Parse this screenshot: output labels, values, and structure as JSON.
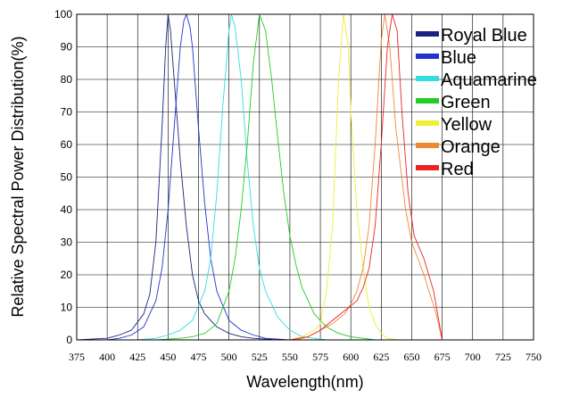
{
  "chart_data": {
    "type": "line",
    "title": "",
    "xlabel": "Wavelength(nm)",
    "ylabel": "Relative Spectral Power Distribution(%)",
    "xlim": [
      375,
      750
    ],
    "ylim": [
      0,
      100
    ],
    "x_ticks": [
      375,
      400,
      425,
      450,
      475,
      500,
      525,
      550,
      575,
      600,
      625,
      650,
      675,
      700,
      725,
      750
    ],
    "y_ticks": [
      0,
      10,
      20,
      30,
      40,
      50,
      60,
      70,
      80,
      90,
      100
    ],
    "grid": true,
    "legend_position": "top-right",
    "series": [
      {
        "name": "Royal Blue",
        "color": "#1a237e",
        "points": [
          [
            375,
            0
          ],
          [
            400,
            0.5
          ],
          [
            410,
            1.5
          ],
          [
            420,
            3
          ],
          [
            430,
            8
          ],
          [
            435,
            14
          ],
          [
            440,
            30
          ],
          [
            445,
            65
          ],
          [
            448,
            90
          ],
          [
            450,
            100
          ],
          [
            452,
            95
          ],
          [
            455,
            80
          ],
          [
            460,
            55
          ],
          [
            465,
            35
          ],
          [
            470,
            20
          ],
          [
            475,
            12
          ],
          [
            480,
            8
          ],
          [
            490,
            4
          ],
          [
            500,
            2
          ],
          [
            510,
            1
          ],
          [
            520,
            0.5
          ],
          [
            540,
            0
          ]
        ]
      },
      {
        "name": "Blue",
        "color": "#2233cc",
        "points": [
          [
            375,
            0
          ],
          [
            400,
            0
          ],
          [
            410,
            0.5
          ],
          [
            420,
            1.5
          ],
          [
            430,
            4
          ],
          [
            440,
            12
          ],
          [
            445,
            22
          ],
          [
            450,
            40
          ],
          [
            455,
            65
          ],
          [
            460,
            90
          ],
          [
            463,
            98
          ],
          [
            465,
            100
          ],
          [
            468,
            96
          ],
          [
            470,
            90
          ],
          [
            475,
            65
          ],
          [
            480,
            42
          ],
          [
            485,
            25
          ],
          [
            490,
            15
          ],
          [
            500,
            6
          ],
          [
            510,
            3
          ],
          [
            520,
            1.5
          ],
          [
            530,
            0.5
          ],
          [
            550,
            0
          ]
        ]
      },
      {
        "name": "Aquamarine",
        "color": "#33dddd",
        "points": [
          [
            425,
            0
          ],
          [
            440,
            0.5
          ],
          [
            450,
            1.5
          ],
          [
            460,
            3
          ],
          [
            470,
            6
          ],
          [
            480,
            15
          ],
          [
            485,
            25
          ],
          [
            490,
            45
          ],
          [
            495,
            72
          ],
          [
            500,
            95
          ],
          [
            502,
            100
          ],
          [
            505,
            96
          ],
          [
            510,
            80
          ],
          [
            515,
            55
          ],
          [
            520,
            35
          ],
          [
            525,
            22
          ],
          [
            530,
            15
          ],
          [
            540,
            7
          ],
          [
            550,
            3
          ],
          [
            560,
            1
          ],
          [
            580,
            0
          ]
        ]
      },
      {
        "name": "Green",
        "color": "#22cc22",
        "points": [
          [
            440,
            0
          ],
          [
            460,
            0.5
          ],
          [
            470,
            1
          ],
          [
            480,
            2
          ],
          [
            490,
            5
          ],
          [
            500,
            15
          ],
          [
            505,
            25
          ],
          [
            510,
            40
          ],
          [
            515,
            60
          ],
          [
            520,
            85
          ],
          [
            525,
            100
          ],
          [
            530,
            95
          ],
          [
            535,
            80
          ],
          [
            540,
            62
          ],
          [
            545,
            45
          ],
          [
            550,
            32
          ],
          [
            555,
            23
          ],
          [
            560,
            16
          ],
          [
            570,
            8
          ],
          [
            580,
            4
          ],
          [
            590,
            2
          ],
          [
            600,
            1
          ],
          [
            620,
            0
          ]
        ]
      },
      {
        "name": "Yellow",
        "color": "#eeee33",
        "points": [
          [
            550,
            0
          ],
          [
            560,
            1
          ],
          [
            570,
            3
          ],
          [
            575,
            5
          ],
          [
            580,
            15
          ],
          [
            585,
            35
          ],
          [
            590,
            80
          ],
          [
            594,
            100
          ],
          [
            598,
            90
          ],
          [
            600,
            70
          ],
          [
            605,
            40
          ],
          [
            610,
            22
          ],
          [
            615,
            10
          ],
          [
            620,
            5
          ],
          [
            625,
            2
          ],
          [
            630,
            0.5
          ],
          [
            640,
            0
          ]
        ]
      },
      {
        "name": "Orange",
        "color": "#ee8833",
        "points": [
          [
            555,
            0
          ],
          [
            565,
            1
          ],
          [
            575,
            3
          ],
          [
            585,
            5
          ],
          [
            595,
            8
          ],
          [
            600,
            11
          ],
          [
            605,
            15
          ],
          [
            610,
            22
          ],
          [
            615,
            35
          ],
          [
            620,
            60
          ],
          [
            625,
            92
          ],
          [
            628,
            100
          ],
          [
            632,
            90
          ],
          [
            637,
            65
          ],
          [
            645,
            40
          ],
          [
            650,
            30
          ],
          [
            660,
            20
          ],
          [
            670,
            8
          ],
          [
            675,
            0
          ]
        ]
      },
      {
        "name": "Red",
        "color": "#ee2222",
        "points": [
          [
            550,
            0
          ],
          [
            565,
            1
          ],
          [
            575,
            3
          ],
          [
            585,
            6
          ],
          [
            595,
            9
          ],
          [
            605,
            12
          ],
          [
            610,
            16
          ],
          [
            615,
            22
          ],
          [
            620,
            35
          ],
          [
            625,
            60
          ],
          [
            630,
            90
          ],
          [
            634,
            100
          ],
          [
            638,
            95
          ],
          [
            642,
            70
          ],
          [
            647,
            45
          ],
          [
            652,
            32
          ],
          [
            660,
            25
          ],
          [
            668,
            15
          ],
          [
            675,
            0
          ]
        ]
      }
    ]
  }
}
